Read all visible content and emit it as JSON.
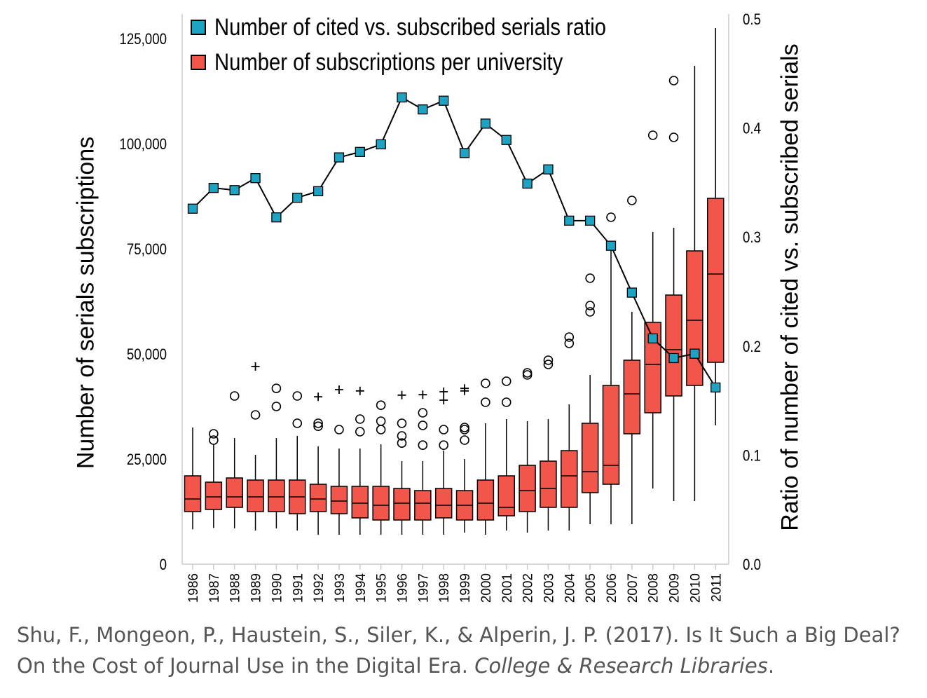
{
  "chart_data": {
    "type": "box+line",
    "ylabel_left": "Number of serials subscriptions",
    "ylabel_right": "Ratio of number of cited vs. subscribed serials",
    "y_left_ticks": [
      "0",
      "25,000",
      "50,000",
      "75,000",
      "100,000",
      "125,000"
    ],
    "y_left_tick_values": [
      0,
      25000,
      50000,
      75000,
      100000,
      125000
    ],
    "y_right_ticks": [
      "0.0",
      "0.1",
      "0.2",
      "0.3",
      "0.4",
      "0.5"
    ],
    "y_right_tick_values": [
      0.0,
      0.1,
      0.2,
      0.3,
      0.4,
      0.5
    ],
    "ylim_left": [
      0,
      130000
    ],
    "ylim_right": [
      0,
      0.5
    ],
    "legend": [
      {
        "label": "Number of cited vs. subscribed serials ratio",
        "color": "#1fa3c3"
      },
      {
        "label": "Number of subscriptions per university",
        "color": "#f2564a"
      }
    ],
    "legend_position": "top-left",
    "categories": [
      "1986",
      "1987",
      "1988",
      "1989",
      "1990",
      "1991",
      "1992",
      "1993",
      "1994",
      "1995",
      "1996",
      "1997",
      "1998",
      "1999",
      "2000",
      "2001",
      "2002",
      "2003",
      "2004",
      "2005",
      "2006",
      "2007",
      "2008",
      "2009",
      "2010",
      "2011"
    ],
    "ratio_series": {
      "name": "Number of cited vs. subscribed serials ratio",
      "values": [
        0.326,
        0.345,
        0.343,
        0.354,
        0.318,
        0.336,
        0.342,
        0.373,
        0.378,
        0.385,
        0.428,
        0.417,
        0.425,
        0.377,
        0.404,
        0.389,
        0.349,
        0.362,
        0.315,
        0.315,
        0.292,
        0.249,
        0.207,
        0.189,
        0.193,
        0.162
      ]
    },
    "box_series": {
      "name": "Number of subscriptions per university",
      "boxes": [
        {
          "min": 8300,
          "q1": 12500,
          "median": 15500,
          "q3": 21000,
          "max": 32500,
          "outliers": [],
          "plus_outliers": []
        },
        {
          "min": 8600,
          "q1": 13000,
          "median": 16000,
          "q3": 19500,
          "max": 28500,
          "outliers": [
            29500,
            31000
          ],
          "plus_outliers": []
        },
        {
          "min": 8500,
          "q1": 13500,
          "median": 16000,
          "q3": 20500,
          "max": 30000,
          "outliers": [
            40000
          ],
          "plus_outliers": []
        },
        {
          "min": 8000,
          "q1": 12500,
          "median": 16000,
          "q3": 20000,
          "max": 26000,
          "outliers": [
            35500
          ],
          "plus_outliers": [
            47000
          ]
        },
        {
          "min": 8500,
          "q1": 12500,
          "median": 16000,
          "q3": 20000,
          "max": 30000,
          "outliers": [
            37500,
            41800
          ],
          "plus_outliers": []
        },
        {
          "min": 8000,
          "q1": 12000,
          "median": 16000,
          "q3": 20000,
          "max": 30500,
          "outliers": [
            33500,
            40000
          ],
          "plus_outliers": []
        },
        {
          "min": 7000,
          "q1": 12500,
          "median": 15500,
          "q3": 19000,
          "max": 28000,
          "outliers": [
            32800,
            33500
          ],
          "plus_outliers": [
            39800
          ]
        },
        {
          "min": 7000,
          "q1": 12000,
          "median": 15000,
          "q3": 18500,
          "max": 27500,
          "outliers": [
            32000
          ],
          "plus_outliers": [
            41500
          ]
        },
        {
          "min": 7000,
          "q1": 11000,
          "median": 14500,
          "q3": 18500,
          "max": 27500,
          "outliers": [
            31500,
            34500
          ],
          "plus_outliers": [
            41200
          ]
        },
        {
          "min": 7000,
          "q1": 10500,
          "median": 14000,
          "q3": 18500,
          "max": 28500,
          "outliers": [
            32000,
            34000,
            37800
          ],
          "plus_outliers": []
        },
        {
          "min": 7000,
          "q1": 10500,
          "median": 14500,
          "q3": 18000,
          "max": 24500,
          "outliers": [
            28800,
            30500,
            33500
          ],
          "plus_outliers": [
            40200
          ]
        },
        {
          "min": 7000,
          "q1": 10500,
          "median": 14500,
          "q3": 17500,
          "max": 24500,
          "outliers": [
            28300,
            33000,
            36000
          ],
          "plus_outliers": [
            40300
          ]
        },
        {
          "min": 7000,
          "q1": 11000,
          "median": 14000,
          "q3": 18000,
          "max": 27000,
          "outliers": [
            28300,
            32000
          ],
          "plus_outliers": [
            39000,
            41000
          ]
        },
        {
          "min": 7500,
          "q1": 10500,
          "median": 14000,
          "q3": 17500,
          "max": 25000,
          "outliers": [
            29500,
            32000,
            32500
          ],
          "plus_outliers": [
            41200,
            41800
          ]
        },
        {
          "min": 7000,
          "q1": 10500,
          "median": 14500,
          "q3": 20000,
          "max": 33500,
          "outliers": [
            38500,
            43000
          ],
          "plus_outliers": []
        },
        {
          "min": 8000,
          "q1": 11500,
          "median": 13500,
          "q3": 21000,
          "max": 34500,
          "outliers": [
            38500,
            43500
          ],
          "plus_outliers": []
        },
        {
          "min": 7500,
          "q1": 12500,
          "median": 17500,
          "q3": 23500,
          "max": 34000,
          "outliers": [
            45000,
            45500
          ],
          "plus_outliers": []
        },
        {
          "min": 8000,
          "q1": 13500,
          "median": 18000,
          "q3": 24500,
          "max": 34500,
          "outliers": [
            47500,
            48500
          ],
          "plus_outliers": []
        },
        {
          "min": 8000,
          "q1": 13500,
          "median": 21000,
          "q3": 27000,
          "max": 38000,
          "outliers": [
            52500,
            54000
          ],
          "plus_outliers": []
        },
        {
          "min": 9500,
          "q1": 17000,
          "median": 22000,
          "q3": 33500,
          "max": 45000,
          "outliers": [
            60000,
            61500,
            68000
          ],
          "plus_outliers": []
        },
        {
          "min": 9500,
          "q1": 19000,
          "median": 23500,
          "q3": 42500,
          "max": 76000,
          "outliers": [
            82500
          ],
          "plus_outliers": []
        },
        {
          "min": 9500,
          "q1": 31000,
          "median": 40500,
          "q3": 48500,
          "max": 60000,
          "outliers": [
            86500
          ],
          "plus_outliers": []
        },
        {
          "min": 18000,
          "q1": 36000,
          "median": 47500,
          "q3": 57500,
          "max": 79000,
          "outliers": [
            102000
          ],
          "plus_outliers": []
        },
        {
          "min": 15000,
          "q1": 40000,
          "median": 51000,
          "q3": 64000,
          "max": 80000,
          "outliers": [
            101500,
            115000
          ],
          "plus_outliers": []
        },
        {
          "min": 15000,
          "q1": 42500,
          "median": 58000,
          "q3": 74500,
          "max": 118500,
          "outliers": [],
          "plus_outliers": []
        },
        {
          "min": 33000,
          "q1": 48000,
          "median": 69000,
          "q3": 87000,
          "max": 127500,
          "outliers": [],
          "plus_outliers": []
        }
      ]
    }
  },
  "citation": {
    "text": "Shu, F., Mongeon, P., Haustein, S., Siler, K., & Alperin, J. P. (2017). Is It Such a Big Deal? On the Cost of Journal Use in the Digital Era.",
    "journal": "College & Research Libraries",
    "end": "."
  },
  "colors": {
    "box_fill": "#f2564a",
    "marker_fill": "#1fa3c3",
    "axis": "#cccccc",
    "line": "#000000"
  }
}
